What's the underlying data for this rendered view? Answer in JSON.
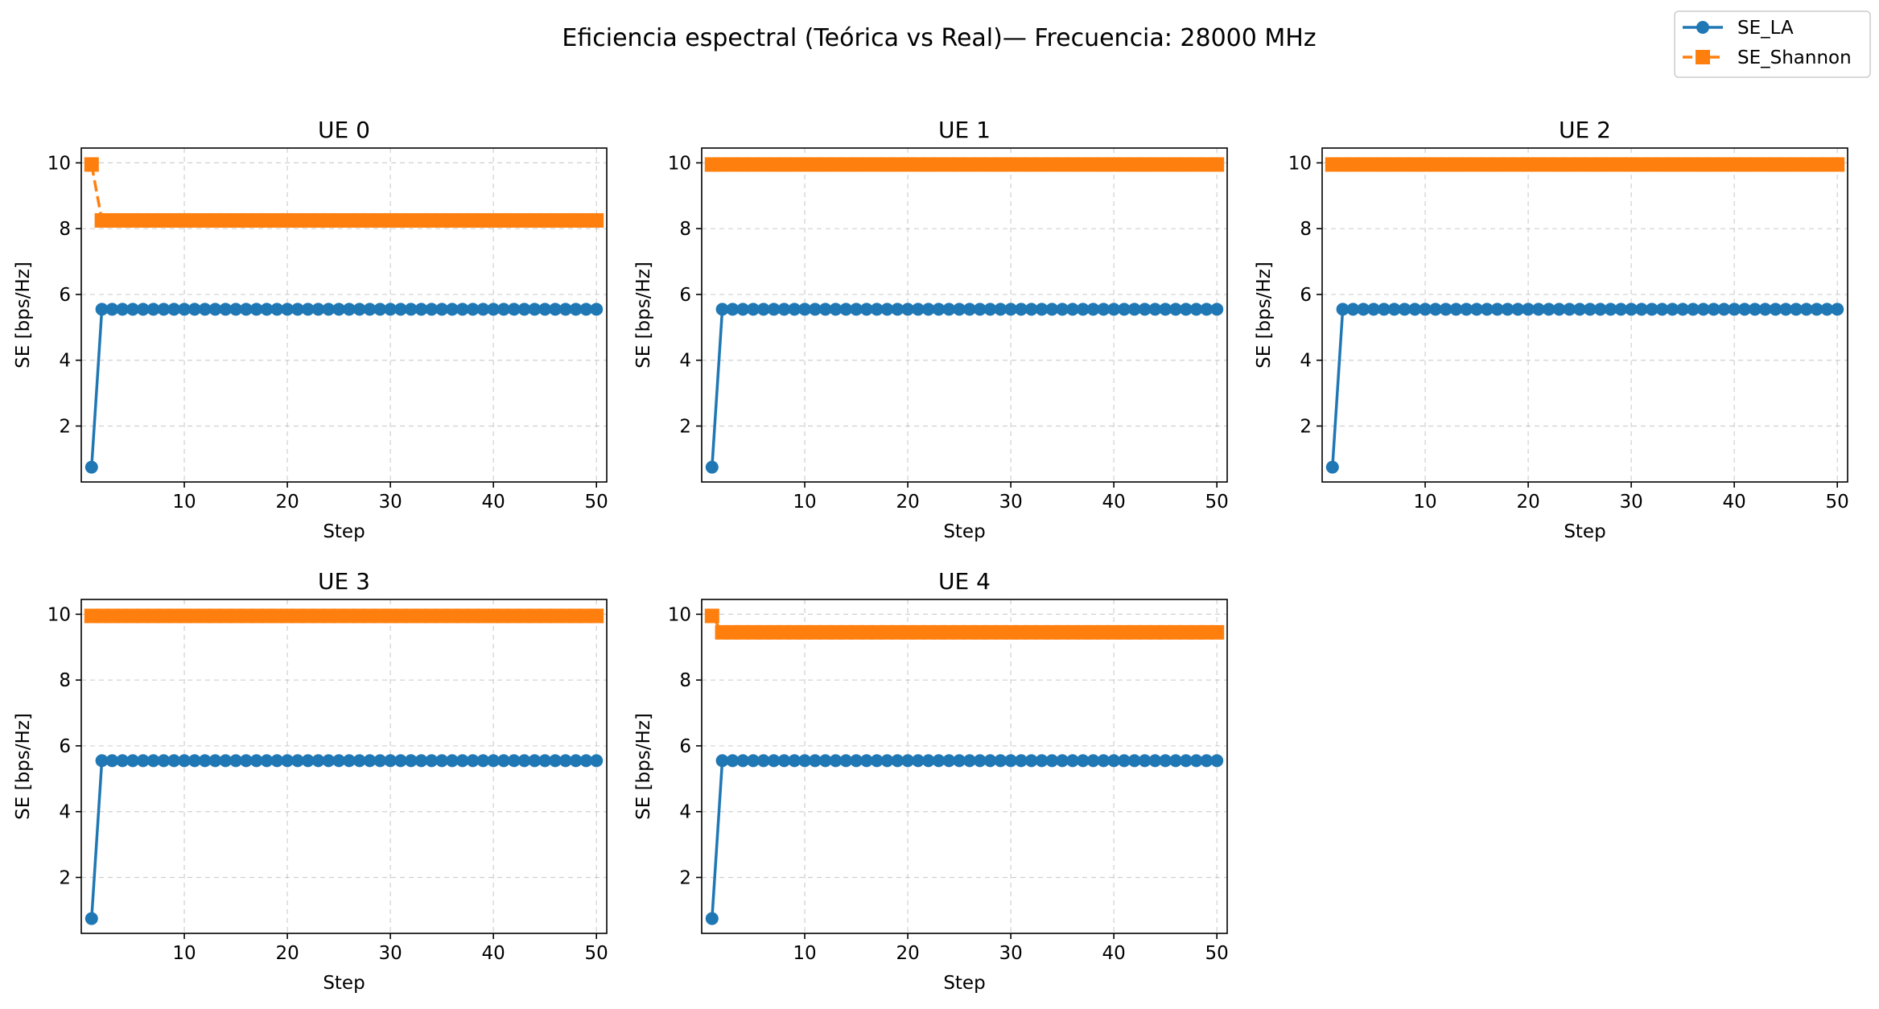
{
  "figure": {
    "suptitle": "Eficiencia espectral (Teórica vs Real)— Frecuencia: 28000 MHz"
  },
  "legend": {
    "position": "top-right",
    "entries": [
      {
        "label": "SE_LA",
        "color": "#1f77b4",
        "marker": "circle",
        "linestyle": "solid"
      },
      {
        "label": "SE_Shannon",
        "color": "#ff7f0e",
        "marker": "square",
        "linestyle": "dashed"
      }
    ]
  },
  "chart_data": [
    {
      "type": "line",
      "title": "UE 0",
      "xlabel": "Step",
      "ylabel": "SE [bps/Hz]",
      "xlim": [
        0,
        51
      ],
      "ylim": [
        0.3,
        10.45
      ],
      "xticks": [
        10,
        20,
        30,
        40,
        50
      ],
      "yticks": [
        2,
        4,
        6,
        8,
        10
      ],
      "grid": true,
      "x": {
        "start": 1,
        "end": 50,
        "step": 1
      },
      "series": [
        {
          "name": "SE_LA",
          "color": "#1f77b4",
          "first": 0.75,
          "rest": 5.55
        },
        {
          "name": "SE_Shannon",
          "color": "#ff7f0e",
          "first": 9.95,
          "rest": 8.25
        }
      ]
    },
    {
      "type": "line",
      "title": "UE 1",
      "xlabel": "Step",
      "ylabel": "SE [bps/Hz]",
      "xlim": [
        0,
        51
      ],
      "ylim": [
        0.3,
        10.45
      ],
      "xticks": [
        10,
        20,
        30,
        40,
        50
      ],
      "yticks": [
        2,
        4,
        6,
        8,
        10
      ],
      "grid": true,
      "x": {
        "start": 1,
        "end": 50,
        "step": 1
      },
      "series": [
        {
          "name": "SE_LA",
          "color": "#1f77b4",
          "first": 0.75,
          "rest": 5.55
        },
        {
          "name": "SE_Shannon",
          "color": "#ff7f0e",
          "first": 9.95,
          "rest": 9.95
        }
      ]
    },
    {
      "type": "line",
      "title": "UE 2",
      "xlabel": "Step",
      "ylabel": "SE [bps/Hz]",
      "xlim": [
        0,
        51
      ],
      "ylim": [
        0.3,
        10.45
      ],
      "xticks": [
        10,
        20,
        30,
        40,
        50
      ],
      "yticks": [
        2,
        4,
        6,
        8,
        10
      ],
      "grid": true,
      "x": {
        "start": 1,
        "end": 50,
        "step": 1
      },
      "series": [
        {
          "name": "SE_LA",
          "color": "#1f77b4",
          "first": 0.75,
          "rest": 5.55
        },
        {
          "name": "SE_Shannon",
          "color": "#ff7f0e",
          "first": 9.95,
          "rest": 9.95
        }
      ]
    },
    {
      "type": "line",
      "title": "UE 3",
      "xlabel": "Step",
      "ylabel": "SE [bps/Hz]",
      "xlim": [
        0,
        51
      ],
      "ylim": [
        0.3,
        10.45
      ],
      "xticks": [
        10,
        20,
        30,
        40,
        50
      ],
      "yticks": [
        2,
        4,
        6,
        8,
        10
      ],
      "grid": true,
      "x": {
        "start": 1,
        "end": 50,
        "step": 1
      },
      "series": [
        {
          "name": "SE_LA",
          "color": "#1f77b4",
          "first": 0.75,
          "rest": 5.55
        },
        {
          "name": "SE_Shannon",
          "color": "#ff7f0e",
          "first": 9.95,
          "rest": 9.95
        }
      ]
    },
    {
      "type": "line",
      "title": "UE 4",
      "xlabel": "Step",
      "ylabel": "SE [bps/Hz]",
      "xlim": [
        0,
        51
      ],
      "ylim": [
        0.3,
        10.45
      ],
      "xticks": [
        10,
        20,
        30,
        40,
        50
      ],
      "yticks": [
        2,
        4,
        6,
        8,
        10
      ],
      "grid": true,
      "x": {
        "start": 1,
        "end": 50,
        "step": 1
      },
      "series": [
        {
          "name": "SE_LA",
          "color": "#1f77b4",
          "first": 0.75,
          "rest": 5.55
        },
        {
          "name": "SE_Shannon",
          "color": "#ff7f0e",
          "first": 9.95,
          "rest": 9.45
        }
      ]
    }
  ]
}
